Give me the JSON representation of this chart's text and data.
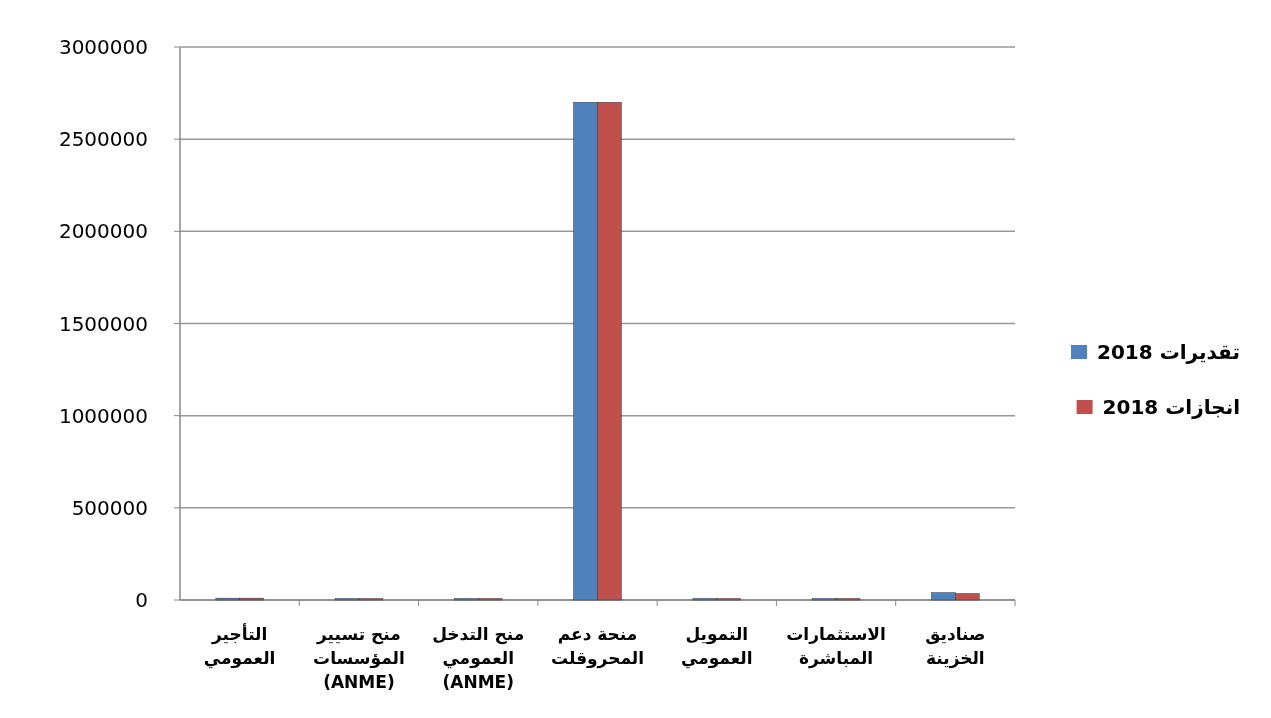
{
  "chart_data": {
    "type": "bar",
    "categories": [
      "التأجير\nالعمومي",
      "منح تسيير\nالمؤسسات\n(ANME)",
      "منح التدخل\nالعمومي\n(ANME)",
      "منحة دعم\nالمحروقلت",
      "التمويل\nالعمومي",
      "الاستثمارات\nالمباشرة",
      "صناديق\nالخزينة"
    ],
    "series": [
      {
        "name": "تقديرات 2018",
        "color": "#4f81bd",
        "values": [
          10000,
          8000,
          8000,
          2700000,
          8000,
          8000,
          40000
        ]
      },
      {
        "name": "انجازات 2018",
        "color": "#c0504d",
        "values": [
          10000,
          8000,
          8000,
          2700000,
          8000,
          8000,
          35000
        ]
      }
    ],
    "ylim": [
      0,
      3000000
    ],
    "yticks": [
      0,
      500000,
      1000000,
      1500000,
      2000000,
      2500000,
      3000000
    ],
    "grid": "y",
    "legend": "right"
  }
}
